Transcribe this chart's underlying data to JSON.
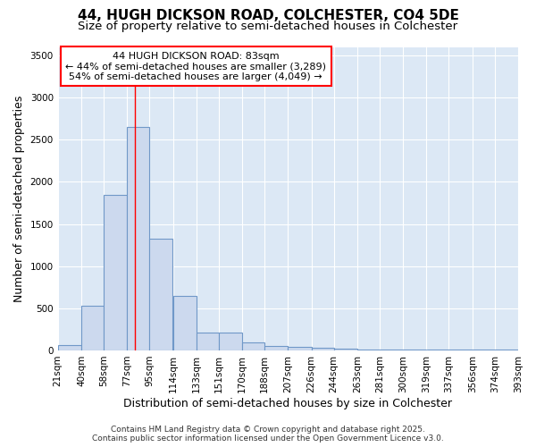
{
  "title": "44, HUGH DICKSON ROAD, COLCHESTER, CO4 5DE",
  "subtitle": "Size of property relative to semi-detached houses in Colchester",
  "xlabel": "Distribution of semi-detached houses by size in Colchester",
  "ylabel": "Number of semi-detached properties",
  "bar_color": "#ccd9ee",
  "bar_edge_color": "#7098c8",
  "background_color": "#dce8f5",
  "grid_color": "#ffffff",
  "annotation_line1": "44 HUGH DICKSON ROAD: 83sqm",
  "annotation_line2": "← 44% of semi-detached houses are smaller (3,289)",
  "annotation_line3": "54% of semi-detached houses are larger (4,049) →",
  "red_line_x": 83,
  "bin_edges": [
    21,
    40,
    58,
    77,
    95,
    114,
    133,
    151,
    170,
    188,
    207,
    226,
    244,
    263,
    281,
    300,
    319,
    337,
    356,
    374,
    393
  ],
  "bar_heights": [
    60,
    535,
    1850,
    2650,
    1320,
    650,
    210,
    210,
    90,
    50,
    40,
    30,
    20,
    15,
    5,
    5,
    5,
    5,
    5,
    5
  ],
  "ylim": [
    0,
    3600
  ],
  "yticks": [
    0,
    500,
    1000,
    1500,
    2000,
    2500,
    3000,
    3500
  ],
  "footer_text": "Contains HM Land Registry data © Crown copyright and database right 2025.\nContains public sector information licensed under the Open Government Licence v3.0.",
  "title_fontsize": 11,
  "subtitle_fontsize": 9.5,
  "axis_label_fontsize": 9,
  "tick_fontsize": 7.5,
  "annotation_fontsize": 8,
  "footer_fontsize": 6.5
}
